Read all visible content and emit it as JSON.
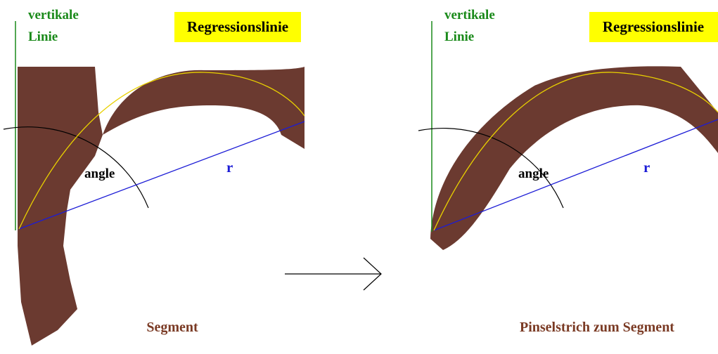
{
  "left": {
    "vertical_label": [
      "vertikale",
      "Linie"
    ],
    "regression_label": "Regressionslinie",
    "angle_label": "angle",
    "r_label": "r",
    "caption": "Segment"
  },
  "right": {
    "vertical_label": [
      "vertikale",
      "Linie"
    ],
    "regression_label": "Regressionslinie",
    "angle_label": "angle",
    "r_label": "r",
    "caption": "Pinselstrich zum Segment"
  }
}
